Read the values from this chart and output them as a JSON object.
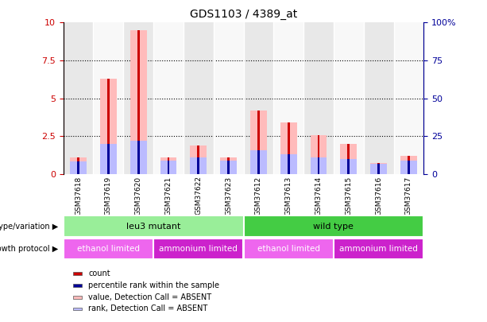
{
  "title": "GDS1103 / 4389_at",
  "samples": [
    "GSM37618",
    "GSM37619",
    "GSM37620",
    "GSM37621",
    "GSM37622",
    "GSM37623",
    "GSM37612",
    "GSM37613",
    "GSM37614",
    "GSM37615",
    "GSM37616",
    "GSM37617"
  ],
  "count_values": [
    1.1,
    6.3,
    9.5,
    1.1,
    1.9,
    1.1,
    4.2,
    3.4,
    2.55,
    2.0,
    0.7,
    1.2
  ],
  "rank_values": [
    0.8,
    2.0,
    2.2,
    0.9,
    1.1,
    0.9,
    1.55,
    1.3,
    1.1,
    1.0,
    0.65,
    0.9
  ],
  "absent_count": [
    1.1,
    6.3,
    9.5,
    1.1,
    1.9,
    1.1,
    4.2,
    3.4,
    2.55,
    2.0,
    0.7,
    1.2
  ],
  "absent_rank": [
    0.8,
    2.0,
    2.2,
    0.9,
    1.1,
    0.9,
    1.55,
    1.3,
    1.1,
    1.0,
    0.65,
    0.9
  ],
  "ylim_left": [
    0,
    10
  ],
  "ylim_right": [
    0,
    100
  ],
  "yticks_left": [
    0,
    2.5,
    5.0,
    7.5,
    10
  ],
  "yticks_right": [
    0,
    25,
    50,
    75,
    100
  ],
  "ytick_labels_left": [
    "0",
    "2.5",
    "5",
    "7.5",
    "10"
  ],
  "ytick_labels_right": [
    "0",
    "25",
    "50",
    "75",
    "100%"
  ],
  "color_count": "#cc0000",
  "color_rank": "#000099",
  "color_absent_count": "#ffbbbb",
  "color_absent_rank": "#bbbbff",
  "groups": [
    {
      "label": "leu3 mutant",
      "start": 0,
      "end": 6,
      "color": "#99ee99"
    },
    {
      "label": "wild type",
      "start": 6,
      "end": 12,
      "color": "#44cc44"
    }
  ],
  "protocols": [
    {
      "label": "ethanol limited",
      "start": 0,
      "end": 3,
      "color": "#ee66ee"
    },
    {
      "label": "ammonium limited",
      "start": 3,
      "end": 6,
      "color": "#cc22cc"
    },
    {
      "label": "ethanol limited",
      "start": 6,
      "end": 9,
      "color": "#ee66ee"
    },
    {
      "label": "ammonium limited",
      "start": 9,
      "end": 12,
      "color": "#cc22cc"
    }
  ],
  "legend_items": [
    {
      "label": "count",
      "color": "#cc0000"
    },
    {
      "label": "percentile rank within the sample",
      "color": "#000099"
    },
    {
      "label": "value, Detection Call = ABSENT",
      "color": "#ffbbbb"
    },
    {
      "label": "rank, Detection Call = ABSENT",
      "color": "#bbbbff"
    }
  ],
  "col_bg_even": "#e8e8e8",
  "col_bg_odd": "#f8f8f8"
}
